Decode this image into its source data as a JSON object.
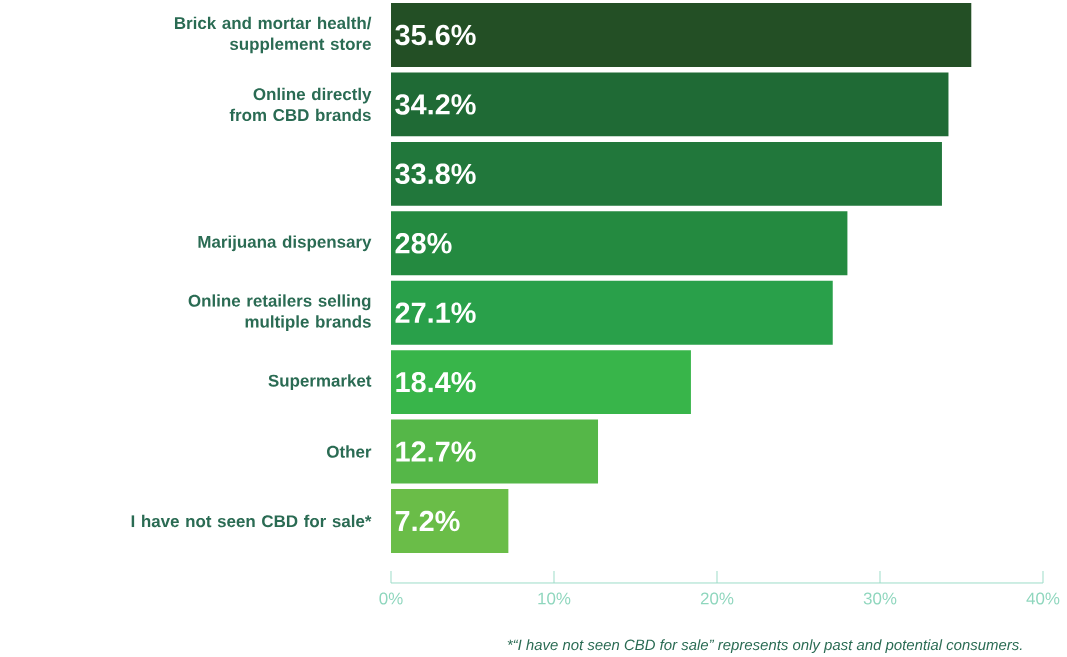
{
  "chart_data": {
    "type": "bar",
    "orientation": "horizontal",
    "categories": [
      "Brick and mortar health/ supplement store",
      "Online directly from CBD brands",
      null,
      "Marijuana dispensary",
      "Online retailers selling multiple brands",
      "Supermarket",
      "Other",
      "I have not seen CBD for sale*"
    ],
    "values": [
      35.6,
      34.2,
      33.8,
      28,
      27.1,
      18.4,
      12.7,
      7.2
    ],
    "value_labels": [
      "35.6%",
      "34.2%",
      "33.8%",
      "28%",
      "27.1%",
      "18.4%",
      "12.7%",
      "7.2%"
    ],
    "colors": [
      "#234f25",
      "#1f6a35",
      "#21773b",
      "#248a40",
      "#29a04a",
      "#38b54a",
      "#55b748",
      "#6abd48"
    ],
    "xlim": [
      0,
      40
    ],
    "xticks": [
      {
        "value": 0,
        "label": "0%"
      },
      {
        "value": 10,
        "label": "10%"
      },
      {
        "value": 20,
        "label": "20%"
      },
      {
        "value": 30,
        "label": "30%"
      },
      {
        "value": 40,
        "label": "40%"
      }
    ],
    "annotations": [
      "*“I have not seen CBD for sale” represents only past and potential consumers."
    ]
  }
}
